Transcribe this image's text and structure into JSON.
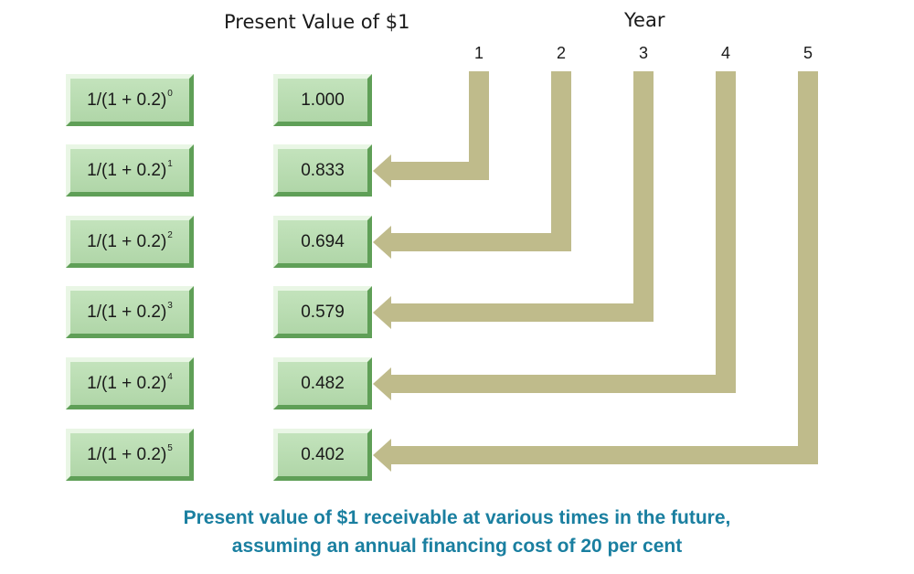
{
  "headings": {
    "present_value": "Present Value of $1",
    "year": "Year"
  },
  "years": [
    "1",
    "2",
    "3",
    "4",
    "5"
  ],
  "rows": [
    {
      "base": "1/(1 + 0.2)",
      "exp": "0",
      "value": "1.000"
    },
    {
      "base": "1/(1 + 0.2)",
      "exp": "1",
      "value": "0.833"
    },
    {
      "base": "1/(1 + 0.2)",
      "exp": "2",
      "value": "0.694"
    },
    {
      "base": "1/(1 + 0.2)",
      "exp": "3",
      "value": "0.579"
    },
    {
      "base": "1/(1 + 0.2)",
      "exp": "4",
      "value": "0.482"
    },
    {
      "base": "1/(1 + 0.2)",
      "exp": "5",
      "value": "0.402"
    }
  ],
  "caption": {
    "line1": "Present value of $1 receivable at various times in the future,",
    "line2": "assuming an annual financing cost of 20 per cent"
  },
  "colors": {
    "arrow": "#bfbb8b",
    "box": "#b8dcb0",
    "caption": "#1a7fa0"
  }
}
